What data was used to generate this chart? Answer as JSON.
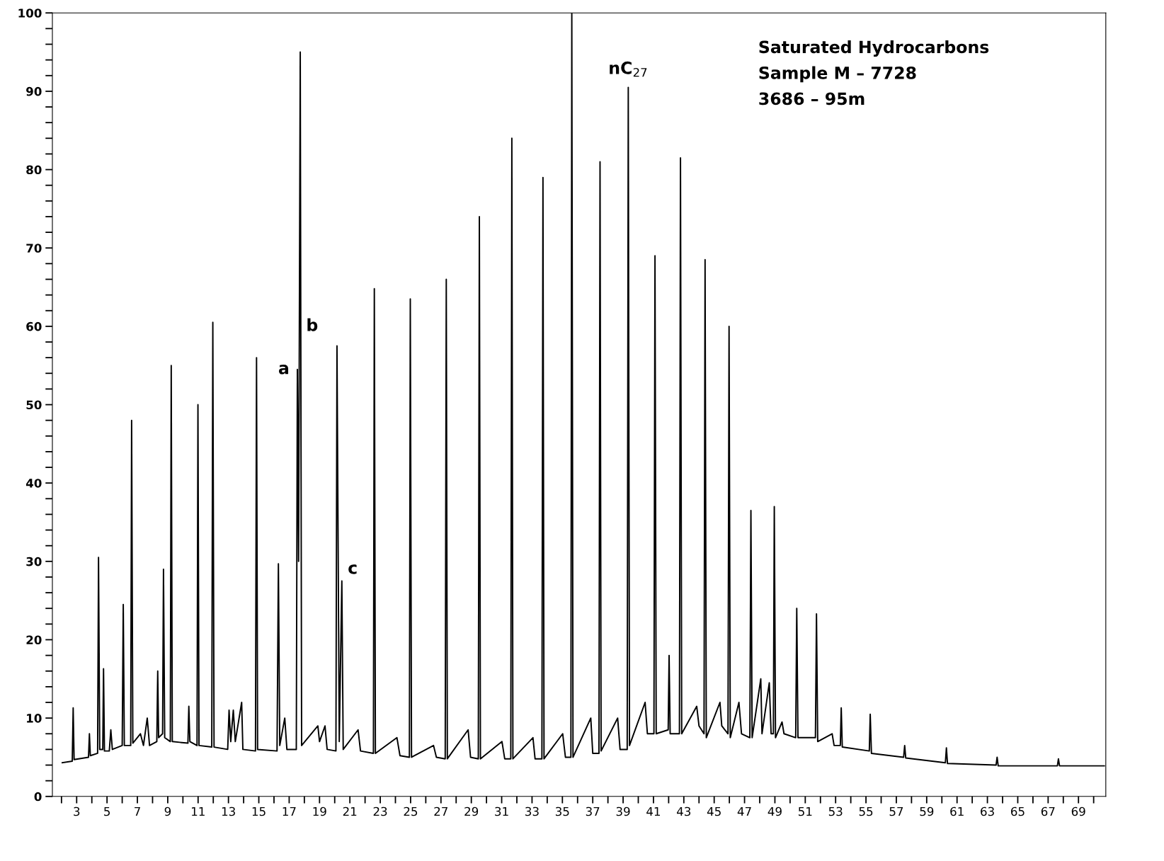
{
  "chart_data": {
    "type": "line",
    "x": [
      2.05,
      2.71,
      2.77,
      2.83,
      3.78,
      3.84,
      3.9,
      4.38,
      4.44,
      4.52,
      4.72,
      4.77,
      4.83,
      5.15,
      5.25,
      5.35,
      6.0,
      6.07,
      6.14,
      6.56,
      6.62,
      6.7,
      7.2,
      7.4,
      7.65,
      7.8,
      8.28,
      8.34,
      8.4,
      8.66,
      8.72,
      8.8,
      9.17,
      9.23,
      9.3,
      10.33,
      10.39,
      10.46,
      10.93,
      10.99,
      11.06,
      11.9,
      11.97,
      12.05,
      12.95,
      13.04,
      13.15,
      13.32,
      13.45,
      13.87,
      13.95,
      14.78,
      14.85,
      14.92,
      16.2,
      16.29,
      16.38,
      16.71,
      16.85,
      17.47,
      17.54,
      17.62,
      17.73,
      17.82,
      18.89,
      19.0,
      19.36,
      19.5,
      20.08,
      20.15,
      20.3,
      20.47,
      20.56,
      21.54,
      21.7,
      22.55,
      22.61,
      22.68,
      24.1,
      24.3,
      24.92,
      24.98,
      25.06,
      26.51,
      26.7,
      27.28,
      27.35,
      27.42,
      28.79,
      28.95,
      29.46,
      29.53,
      29.6,
      31.02,
      31.2,
      31.6,
      31.67,
      31.74,
      33.06,
      33.2,
      33.65,
      33.72,
      33.79,
      35.02,
      35.2,
      35.56,
      35.62,
      35.7,
      36.87,
      37.0,
      37.41,
      37.48,
      37.55,
      38.64,
      38.8,
      39.27,
      39.34,
      39.42,
      40.45,
      40.6,
      41.03,
      41.1,
      41.18,
      41.97,
      42.03,
      42.1,
      42.71,
      42.78,
      42.86,
      43.85,
      44.0,
      44.33,
      44.4,
      44.48,
      45.38,
      45.5,
      45.91,
      45.98,
      46.06,
      46.63,
      46.8,
      47.35,
      47.42,
      47.5,
      48.07,
      48.15,
      48.63,
      48.75,
      48.9,
      48.96,
      49.04,
      49.47,
      49.6,
      50.37,
      50.44,
      50.52,
      51.67,
      51.74,
      51.82,
      52.77,
      52.9,
      53.31,
      53.37,
      53.44,
      55.22,
      55.28,
      55.36,
      57.48,
      57.55,
      57.62,
      60.23,
      60.3,
      60.37,
      63.57,
      63.64,
      63.71,
      67.61,
      67.68,
      67.75,
      70.7
    ],
    "series": [
      {
        "color": "#000000",
        "values": [
          4.3,
          4.5,
          11.3,
          4.7,
          5,
          8,
          5.2,
          5.5,
          30.5,
          6,
          6,
          16.3,
          5.8,
          5.8,
          8.5,
          6,
          6.5,
          24.5,
          6.5,
          6.5,
          48,
          6.8,
          8,
          6.5,
          10,
          6.5,
          7,
          16,
          7.5,
          8,
          29,
          7.5,
          7,
          55,
          7,
          6.8,
          11.5,
          7,
          6.5,
          50,
          6.5,
          6.3,
          60.5,
          6.3,
          6,
          11,
          7,
          11,
          7,
          12,
          6,
          5.8,
          56,
          6,
          5.8,
          29.7,
          6.5,
          10,
          6,
          6,
          54.5,
          30,
          95,
          6.5,
          9,
          7,
          9,
          6,
          5.8,
          57.5,
          7,
          27.5,
          6,
          8.5,
          5.8,
          5.5,
          64.8,
          5.5,
          7.5,
          5.2,
          5,
          63.5,
          5,
          6.5,
          5,
          4.8,
          66,
          4.8,
          8.5,
          5,
          4.8,
          74,
          4.8,
          7,
          4.8,
          4.8,
          84,
          4.8,
          7.5,
          4.8,
          4.8,
          79,
          4.8,
          8,
          5,
          5,
          100,
          5,
          10,
          5.5,
          5.5,
          81,
          5.8,
          10,
          6,
          6,
          90.5,
          6.5,
          12,
          8,
          8,
          69,
          8,
          8.5,
          18,
          8,
          8,
          81.5,
          8,
          11.5,
          9,
          8,
          68.5,
          7.5,
          12,
          9,
          8,
          60,
          7.5,
          12,
          8,
          7.5,
          36.5,
          7.5,
          15,
          8,
          14.5,
          8,
          8,
          37,
          7.5,
          9.5,
          8,
          7.5,
          24,
          7.5,
          7.5,
          23.3,
          7,
          8,
          6.5,
          6.5,
          11.3,
          6.3,
          5.8,
          10.5,
          5.5,
          5,
          6.5,
          4.9,
          4.3,
          6.2,
          4.2,
          4,
          5,
          3.9,
          3.9,
          4.8,
          3.9,
          3.9
        ]
      }
    ],
    "xlim": [
      1.4,
      70.8
    ],
    "xticks": [
      {
        "value": 2,
        "label": null
      },
      3,
      {
        "value": 4,
        "label": null
      },
      5,
      {
        "value": 6,
        "label": null
      },
      7,
      {
        "value": 8,
        "label": null
      },
      9,
      {
        "value": 10,
        "label": null
      },
      11,
      {
        "value": 12,
        "label": null
      },
      13,
      {
        "value": 14,
        "label": null
      },
      15,
      {
        "value": 16,
        "label": null
      },
      17,
      {
        "value": 18,
        "label": null
      },
      19,
      {
        "value": 20,
        "label": null
      },
      21,
      {
        "value": 22,
        "label": null
      },
      23,
      {
        "value": 24,
        "label": null
      },
      25,
      {
        "value": 26,
        "label": null
      },
      27,
      {
        "value": 28,
        "label": null
      },
      29,
      {
        "value": 30,
        "label": null
      },
      31,
      {
        "value": 32,
        "label": null
      },
      33,
      {
        "value": 34,
        "label": null
      },
      35,
      {
        "value": 36,
        "label": null
      },
      37,
      {
        "value": 38,
        "label": null
      },
      39,
      {
        "value": 40,
        "label": null
      },
      41,
      {
        "value": 42,
        "label": null
      },
      43,
      {
        "value": 44,
        "label": null
      },
      45,
      {
        "value": 46,
        "label": null
      },
      47,
      {
        "value": 48,
        "label": null
      },
      49,
      {
        "value": 50,
        "label": null
      },
      51,
      {
        "value": 52,
        "label": null
      },
      53,
      {
        "value": 54,
        "label": null
      },
      55,
      {
        "value": 56,
        "label": null
      },
      57,
      {
        "value": 58,
        "label": null
      },
      59,
      {
        "value": 60,
        "label": null
      },
      61,
      {
        "value": 62,
        "label": null
      },
      63,
      {
        "value": 64,
        "label": null
      },
      65,
      {
        "value": 66,
        "label": null
      },
      67,
      {
        "value": 68,
        "label": null
      },
      69,
      {
        "value": 70,
        "label": null
      }
    ],
    "ylim": [
      0,
      100
    ],
    "yticks": [
      0,
      {
        "value": 2,
        "label": null
      },
      {
        "value": 4,
        "label": null
      },
      {
        "value": 6,
        "label": null
      },
      {
        "value": 8,
        "label": null
      },
      10,
      {
        "value": 12,
        "label": null
      },
      {
        "value": 14,
        "label": null
      },
      {
        "value": 16,
        "label": null
      },
      {
        "value": 18,
        "label": null
      },
      20,
      {
        "value": 22,
        "label": null
      },
      {
        "value": 24,
        "label": null
      },
      {
        "value": 26,
        "label": null
      },
      {
        "value": 28,
        "label": null
      },
      30,
      {
        "value": 32,
        "label": null
      },
      {
        "value": 34,
        "label": null
      },
      {
        "value": 36,
        "label": null
      },
      {
        "value": 38,
        "label": null
      },
      40,
      {
        "value": 42,
        "label": null
      },
      {
        "value": 44,
        "label": null
      },
      {
        "value": 46,
        "label": null
      },
      {
        "value": 48,
        "label": null
      },
      50,
      {
        "value": 52,
        "label": null
      },
      {
        "value": 54,
        "label": null
      },
      {
        "value": 56,
        "label": null
      },
      {
        "value": 58,
        "label": null
      },
      60,
      {
        "value": 62,
        "label": null
      },
      {
        "value": 64,
        "label": null
      },
      {
        "value": 66,
        "label": null
      },
      {
        "value": 68,
        "label": null
      },
      70,
      {
        "value": 72,
        "label": null
      },
      {
        "value": 74,
        "label": null
      },
      {
        "value": 76,
        "label": null
      },
      {
        "value": 78,
        "label": null
      },
      80,
      {
        "value": 82,
        "label": null
      },
      {
        "value": 84,
        "label": null
      },
      {
        "value": 86,
        "label": null
      },
      {
        "value": 88,
        "label": null
      },
      90,
      {
        "value": 92,
        "label": null
      },
      {
        "value": 94,
        "label": null
      },
      {
        "value": 96,
        "label": null
      },
      {
        "value": 98,
        "label": null
      },
      100
    ],
    "grid": false,
    "legend": false,
    "marker": "none",
    "line_style": "solid",
    "annotations": [
      "Saturated Hydrocarbons",
      "Sample M – 7728",
      "3686 – 95m",
      {
        "text": "a",
        "x": 17.54,
        "y": 54.5
      },
      {
        "text": "b",
        "x": 17.73,
        "y": 60
      },
      {
        "text": "c",
        "x": 20.47,
        "y": 29
      },
      {
        "text": "nC$_{27}$",
        "x": 39.34,
        "y": 90.5
      }
    ]
  }
}
